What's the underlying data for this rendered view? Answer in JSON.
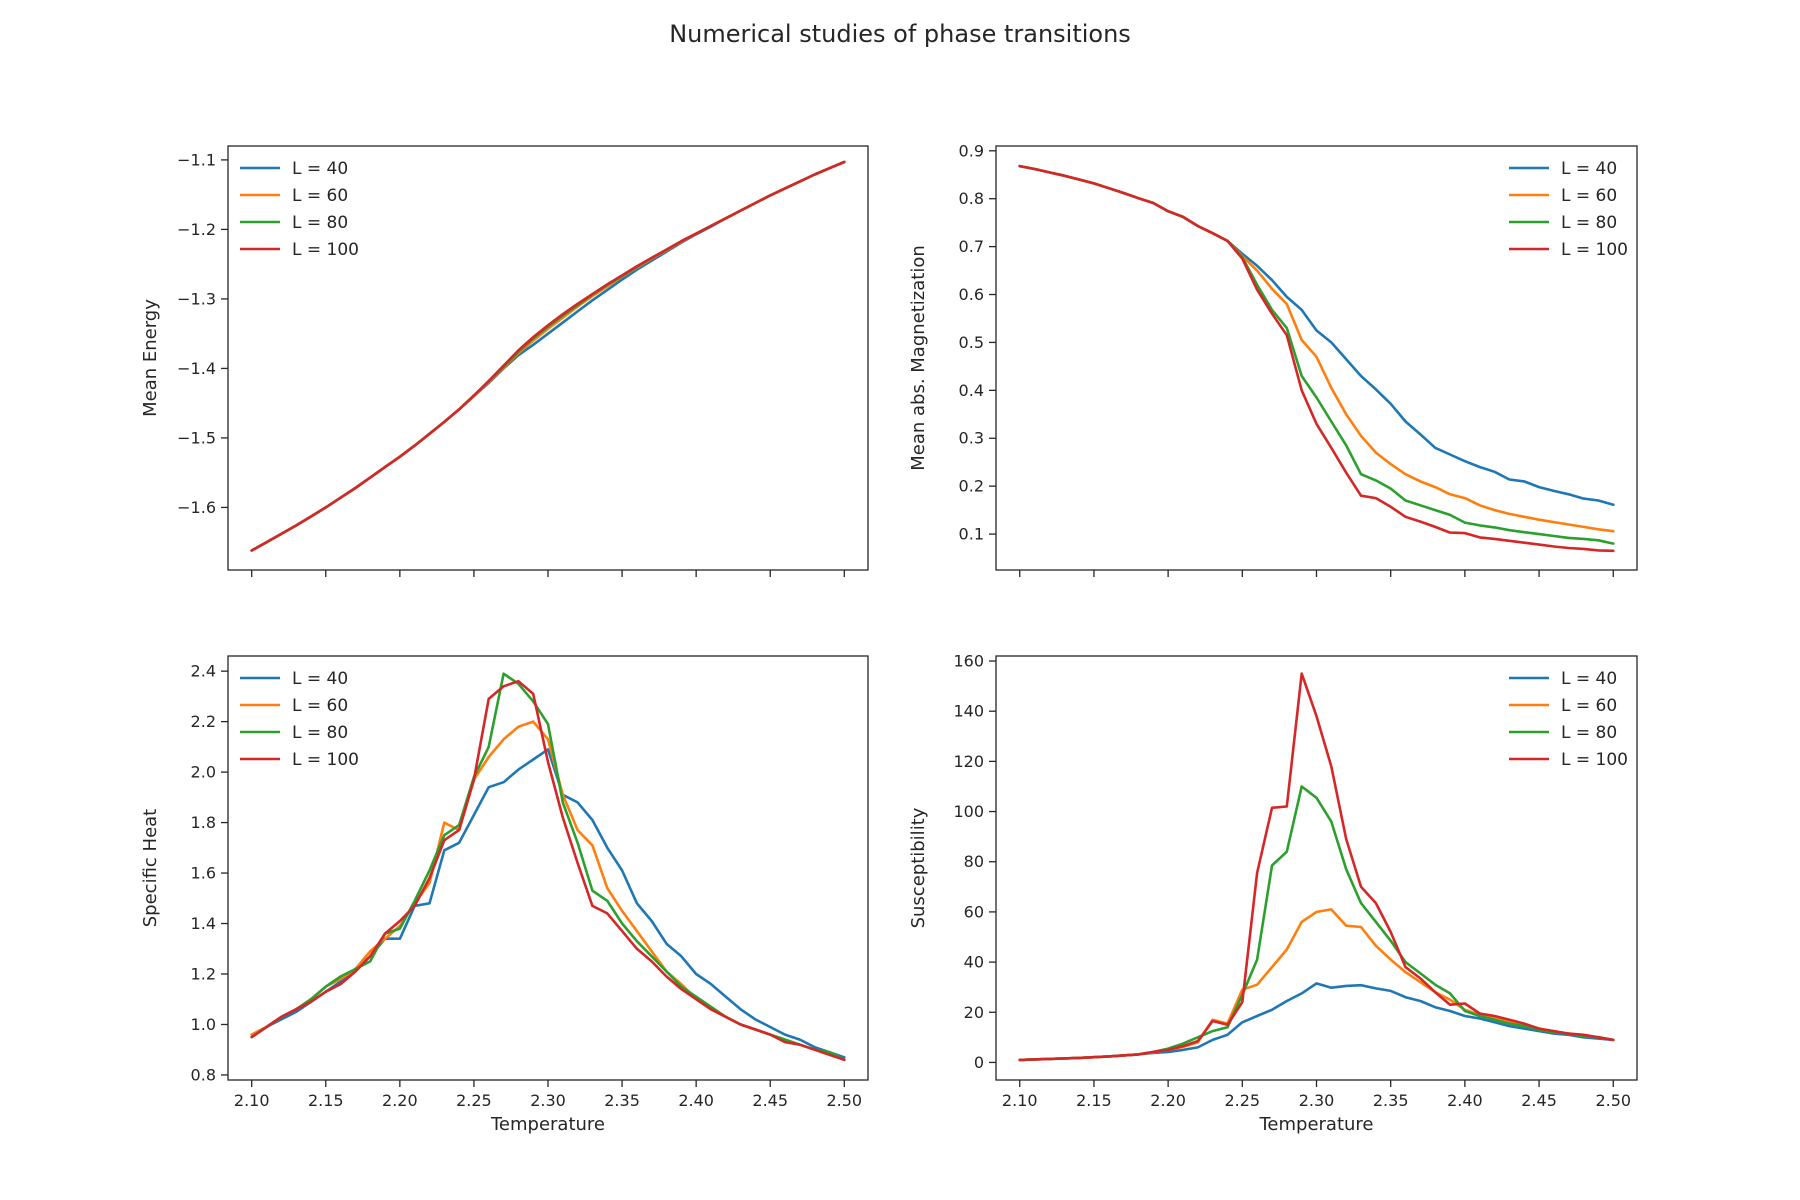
{
  "suptitle": "Numerical studies of phase transitions",
  "colors": {
    "L40": "#1f77b4",
    "L60": "#ff7f0e",
    "L80": "#2ca02c",
    "L100": "#d62728"
  },
  "chart_data": [
    {
      "type": "line",
      "title": "",
      "xlabel": "",
      "ylabel": "Mean Energy",
      "xlim": [
        2.084,
        2.516
      ],
      "ylim": [
        -1.69,
        -1.08
      ],
      "xticks": [
        2.1,
        2.15,
        2.2,
        2.25,
        2.3,
        2.35,
        2.4,
        2.45,
        2.5
      ],
      "xtick_labels": [],
      "yticks": [
        -1.6,
        -1.5,
        -1.4,
        -1.3,
        -1.2,
        -1.1
      ],
      "ytick_labels": [
        "−1.6",
        "−1.5",
        "−1.4",
        "−1.3",
        "−1.2",
        "−1.1"
      ],
      "legend_position": "upper-left",
      "grid": false,
      "x": [
        2.1,
        2.11,
        2.12,
        2.13,
        2.14,
        2.15,
        2.16,
        2.17,
        2.18,
        2.19,
        2.2,
        2.21,
        2.22,
        2.23,
        2.24,
        2.25,
        2.26,
        2.27,
        2.28,
        2.29,
        2.3,
        2.31,
        2.32,
        2.33,
        2.34,
        2.35,
        2.36,
        2.37,
        2.38,
        2.39,
        2.4,
        2.41,
        2.42,
        2.43,
        2.44,
        2.45,
        2.46,
        2.47,
        2.48,
        2.49,
        2.5
      ],
      "series": [
        {
          "name": "L = 40",
          "color": "#1f77b4",
          "values": [
            -1.662,
            -1.65,
            -1.638,
            -1.626,
            -1.613,
            -1.6,
            -1.586,
            -1.572,
            -1.557,
            -1.542,
            -1.527,
            -1.511,
            -1.494,
            -1.477,
            -1.459,
            -1.44,
            -1.421,
            -1.4,
            -1.381,
            -1.366,
            -1.35,
            -1.334,
            -1.318,
            -1.302,
            -1.287,
            -1.272,
            -1.258,
            -1.245,
            -1.232,
            -1.219,
            -1.207,
            -1.196,
            -1.184,
            -1.173,
            -1.162,
            -1.151,
            -1.141,
            -1.131,
            -1.121,
            -1.112,
            -1.103
          ]
        },
        {
          "name": "L = 60",
          "color": "#ff7f0e",
          "values": [
            -1.662,
            -1.65,
            -1.638,
            -1.626,
            -1.613,
            -1.6,
            -1.586,
            -1.572,
            -1.557,
            -1.542,
            -1.527,
            -1.511,
            -1.494,
            -1.477,
            -1.459,
            -1.44,
            -1.42,
            -1.399,
            -1.378,
            -1.36,
            -1.343,
            -1.327,
            -1.311,
            -1.296,
            -1.282,
            -1.268,
            -1.255,
            -1.242,
            -1.23,
            -1.218,
            -1.206,
            -1.195,
            -1.184,
            -1.173,
            -1.162,
            -1.151,
            -1.141,
            -1.131,
            -1.121,
            -1.112,
            -1.103
          ]
        },
        {
          "name": "L = 80",
          "color": "#2ca02c",
          "values": [
            -1.662,
            -1.65,
            -1.638,
            -1.626,
            -1.613,
            -1.6,
            -1.586,
            -1.572,
            -1.557,
            -1.542,
            -1.527,
            -1.511,
            -1.494,
            -1.477,
            -1.459,
            -1.439,
            -1.419,
            -1.398,
            -1.376,
            -1.357,
            -1.34,
            -1.324,
            -1.309,
            -1.294,
            -1.28,
            -1.267,
            -1.254,
            -1.241,
            -1.229,
            -1.217,
            -1.206,
            -1.195,
            -1.184,
            -1.173,
            -1.162,
            -1.151,
            -1.141,
            -1.131,
            -1.121,
            -1.112,
            -1.103
          ]
        },
        {
          "name": "L = 100",
          "color": "#d62728",
          "values": [
            -1.662,
            -1.65,
            -1.638,
            -1.626,
            -1.613,
            -1.6,
            -1.586,
            -1.572,
            -1.557,
            -1.542,
            -1.527,
            -1.511,
            -1.494,
            -1.477,
            -1.459,
            -1.439,
            -1.418,
            -1.396,
            -1.374,
            -1.355,
            -1.338,
            -1.322,
            -1.307,
            -1.293,
            -1.279,
            -1.266,
            -1.253,
            -1.241,
            -1.229,
            -1.217,
            -1.206,
            -1.195,
            -1.184,
            -1.173,
            -1.162,
            -1.151,
            -1.141,
            -1.131,
            -1.121,
            -1.112,
            -1.103
          ]
        }
      ]
    },
    {
      "type": "line",
      "title": "",
      "xlabel": "",
      "ylabel": "Mean abs. Magnetization",
      "xlim": [
        2.084,
        2.516
      ],
      "ylim": [
        0.025,
        0.91
      ],
      "xticks": [
        2.1,
        2.15,
        2.2,
        2.25,
        2.3,
        2.35,
        2.4,
        2.45,
        2.5
      ],
      "xtick_labels": [],
      "yticks": [
        0.1,
        0.2,
        0.3,
        0.4,
        0.5,
        0.6,
        0.7,
        0.8,
        0.9
      ],
      "ytick_labels": [
        "0.1",
        "0.2",
        "0.3",
        "0.4",
        "0.5",
        "0.6",
        "0.7",
        "0.8",
        "0.9"
      ],
      "legend_position": "upper-right",
      "grid": false,
      "x": [
        2.1,
        2.11,
        2.12,
        2.13,
        2.14,
        2.15,
        2.16,
        2.17,
        2.18,
        2.19,
        2.2,
        2.21,
        2.22,
        2.23,
        2.24,
        2.25,
        2.26,
        2.27,
        2.28,
        2.29,
        2.3,
        2.31,
        2.32,
        2.33,
        2.34,
        2.35,
        2.36,
        2.37,
        2.38,
        2.39,
        2.4,
        2.41,
        2.42,
        2.43,
        2.44,
        2.45,
        2.46,
        2.47,
        2.48,
        2.49,
        2.5
      ],
      "series": [
        {
          "name": "L = 40",
          "color": "#1f77b4",
          "values": [
            0.868,
            0.862,
            0.855,
            0.848,
            0.84,
            0.832,
            0.822,
            0.812,
            0.801,
            0.791,
            0.774,
            0.762,
            0.743,
            0.728,
            0.712,
            0.685,
            0.66,
            0.63,
            0.595,
            0.568,
            0.525,
            0.5,
            0.465,
            0.43,
            0.402,
            0.372,
            0.335,
            0.308,
            0.28,
            0.266,
            0.252,
            0.24,
            0.23,
            0.214,
            0.21,
            0.198,
            0.19,
            0.183,
            0.174,
            0.17,
            0.161
          ]
        },
        {
          "name": "L = 60",
          "color": "#ff7f0e",
          "values": [
            0.868,
            0.862,
            0.855,
            0.848,
            0.84,
            0.832,
            0.822,
            0.812,
            0.801,
            0.791,
            0.774,
            0.762,
            0.743,
            0.728,
            0.712,
            0.68,
            0.65,
            0.612,
            0.58,
            0.505,
            0.47,
            0.405,
            0.35,
            0.305,
            0.27,
            0.246,
            0.225,
            0.21,
            0.198,
            0.183,
            0.175,
            0.16,
            0.15,
            0.142,
            0.136,
            0.13,
            0.125,
            0.12,
            0.115,
            0.11,
            0.106
          ]
        },
        {
          "name": "L = 80",
          "color": "#2ca02c",
          "values": [
            0.868,
            0.862,
            0.855,
            0.848,
            0.84,
            0.832,
            0.822,
            0.812,
            0.801,
            0.791,
            0.774,
            0.762,
            0.743,
            0.728,
            0.712,
            0.678,
            0.62,
            0.568,
            0.53,
            0.43,
            0.385,
            0.335,
            0.285,
            0.225,
            0.212,
            0.195,
            0.17,
            0.16,
            0.15,
            0.14,
            0.124,
            0.118,
            0.114,
            0.108,
            0.104,
            0.1,
            0.096,
            0.092,
            0.09,
            0.087,
            0.08
          ]
        },
        {
          "name": "L = 100",
          "color": "#d62728",
          "values": [
            0.868,
            0.862,
            0.855,
            0.848,
            0.84,
            0.832,
            0.822,
            0.812,
            0.801,
            0.791,
            0.774,
            0.762,
            0.743,
            0.728,
            0.712,
            0.675,
            0.61,
            0.56,
            0.515,
            0.4,
            0.33,
            0.28,
            0.228,
            0.18,
            0.175,
            0.157,
            0.136,
            0.126,
            0.115,
            0.103,
            0.102,
            0.093,
            0.09,
            0.086,
            0.082,
            0.078,
            0.074,
            0.071,
            0.069,
            0.066,
            0.065
          ]
        }
      ]
    },
    {
      "type": "line",
      "title": "",
      "xlabel": "Temperature",
      "ylabel": "Specific Heat",
      "xlim": [
        2.084,
        2.516
      ],
      "ylim": [
        0.78,
        2.46
      ],
      "xticks": [
        2.1,
        2.15,
        2.2,
        2.25,
        2.3,
        2.35,
        2.4,
        2.45,
        2.5
      ],
      "xtick_labels": [
        "2.10",
        "2.15",
        "2.20",
        "2.25",
        "2.30",
        "2.35",
        "2.40",
        "2.45",
        "2.50"
      ],
      "yticks": [
        0.8,
        1.0,
        1.2,
        1.4,
        1.6,
        1.8,
        2.0,
        2.2,
        2.4
      ],
      "ytick_labels": [
        "0.8",
        "1.0",
        "1.2",
        "1.4",
        "1.6",
        "1.8",
        "2.0",
        "2.2",
        "2.4"
      ],
      "legend_position": "upper-left",
      "grid": false,
      "x": [
        2.1,
        2.11,
        2.12,
        2.13,
        2.14,
        2.15,
        2.16,
        2.17,
        2.18,
        2.19,
        2.2,
        2.21,
        2.22,
        2.23,
        2.24,
        2.25,
        2.26,
        2.27,
        2.28,
        2.29,
        2.3,
        2.31,
        2.32,
        2.33,
        2.34,
        2.35,
        2.36,
        2.37,
        2.38,
        2.39,
        2.4,
        2.41,
        2.42,
        2.43,
        2.44,
        2.45,
        2.46,
        2.47,
        2.48,
        2.49,
        2.5
      ],
      "series": [
        {
          "name": "L = 40",
          "color": "#1f77b4",
          "values": [
            0.96,
            0.99,
            1.02,
            1.05,
            1.09,
            1.13,
            1.17,
            1.22,
            1.27,
            1.34,
            1.34,
            1.47,
            1.48,
            1.69,
            1.72,
            1.83,
            1.94,
            1.96,
            2.01,
            2.05,
            2.09,
            1.91,
            1.88,
            1.81,
            1.7,
            1.61,
            1.48,
            1.41,
            1.32,
            1.27,
            1.2,
            1.16,
            1.11,
            1.06,
            1.02,
            0.99,
            0.96,
            0.94,
            0.91,
            0.89,
            0.87
          ]
        },
        {
          "name": "L = 60",
          "color": "#ff7f0e",
          "values": [
            0.96,
            0.99,
            1.03,
            1.06,
            1.1,
            1.15,
            1.18,
            1.22,
            1.29,
            1.34,
            1.39,
            1.48,
            1.56,
            1.8,
            1.77,
            1.97,
            2.06,
            2.13,
            2.18,
            2.2,
            2.13,
            1.91,
            1.77,
            1.71,
            1.54,
            1.45,
            1.37,
            1.29,
            1.21,
            1.16,
            1.1,
            1.06,
            1.03,
            1.0,
            0.98,
            0.96,
            0.94,
            0.92,
            0.9,
            0.88,
            0.86
          ]
        },
        {
          "name": "L = 80",
          "color": "#2ca02c",
          "values": [
            0.95,
            0.99,
            1.03,
            1.06,
            1.1,
            1.15,
            1.19,
            1.22,
            1.25,
            1.36,
            1.38,
            1.49,
            1.61,
            1.75,
            1.79,
            1.98,
            2.1,
            2.39,
            2.35,
            2.28,
            2.19,
            1.88,
            1.72,
            1.53,
            1.49,
            1.4,
            1.33,
            1.27,
            1.21,
            1.15,
            1.11,
            1.07,
            1.03,
            1.0,
            0.98,
            0.96,
            0.94,
            0.92,
            0.9,
            0.89,
            0.86
          ]
        },
        {
          "name": "L = 100",
          "color": "#d62728",
          "values": [
            0.95,
            0.99,
            1.03,
            1.06,
            1.09,
            1.13,
            1.16,
            1.21,
            1.27,
            1.36,
            1.41,
            1.47,
            1.58,
            1.73,
            1.77,
            1.97,
            2.29,
            2.34,
            2.36,
            2.31,
            2.04,
            1.82,
            1.64,
            1.47,
            1.44,
            1.37,
            1.3,
            1.25,
            1.19,
            1.14,
            1.1,
            1.06,
            1.03,
            1.0,
            0.98,
            0.96,
            0.93,
            0.92,
            0.9,
            0.88,
            0.86
          ]
        }
      ]
    },
    {
      "type": "line",
      "title": "",
      "xlabel": "Temperature",
      "ylabel": "Susceptibility",
      "xlim": [
        2.084,
        2.516
      ],
      "ylim": [
        -7,
        162
      ],
      "xticks": [
        2.1,
        2.15,
        2.2,
        2.25,
        2.3,
        2.35,
        2.4,
        2.45,
        2.5
      ],
      "xtick_labels": [
        "2.10",
        "2.15",
        "2.20",
        "2.25",
        "2.30",
        "2.35",
        "2.40",
        "2.45",
        "2.50"
      ],
      "yticks": [
        0,
        20,
        40,
        60,
        80,
        100,
        120,
        140,
        160
      ],
      "ytick_labels": [
        "0",
        "20",
        "40",
        "60",
        "80",
        "100",
        "120",
        "140",
        "160"
      ],
      "legend_position": "upper-right",
      "grid": false,
      "x": [
        2.1,
        2.11,
        2.12,
        2.13,
        2.14,
        2.15,
        2.16,
        2.17,
        2.18,
        2.19,
        2.2,
        2.21,
        2.22,
        2.23,
        2.24,
        2.25,
        2.26,
        2.27,
        2.28,
        2.29,
        2.3,
        2.31,
        2.32,
        2.33,
        2.34,
        2.35,
        2.36,
        2.37,
        2.38,
        2.39,
        2.4,
        2.41,
        2.42,
        2.43,
        2.44,
        2.45,
        2.46,
        2.47,
        2.48,
        2.49,
        2.5
      ],
      "series": [
        {
          "name": "L = 40",
          "color": "#1f77b4",
          "values": [
            1,
            1.2,
            1.4,
            1.6,
            1.8,
            2.1,
            2.4,
            2.8,
            3.2,
            3.8,
            4.2,
            5.0,
            6.0,
            9.0,
            11.0,
            16.0,
            18.5,
            21.0,
            24.5,
            27.5,
            31.5,
            29.8,
            30.5,
            30.8,
            29.5,
            28.5,
            26.0,
            24.5,
            22.0,
            20.5,
            18.5,
            17.5,
            16.0,
            14.5,
            13.5,
            12.5,
            11.5,
            11.0,
            10.0,
            9.5,
            9.0
          ]
        },
        {
          "name": "L = 60",
          "color": "#ff7f0e",
          "values": [
            1,
            1.2,
            1.4,
            1.6,
            1.8,
            2.1,
            2.4,
            2.8,
            3.2,
            4.0,
            5.0,
            6.2,
            8.0,
            17.0,
            15.5,
            29.0,
            31.0,
            38.0,
            45.0,
            56.0,
            60.0,
            61.0,
            54.5,
            54.0,
            46.5,
            41.0,
            36.0,
            32.0,
            28.0,
            25.0,
            21.0,
            19.0,
            17.5,
            16.0,
            14.5,
            13.5,
            12.5,
            11.5,
            10.5,
            10.0,
            9.0
          ]
        },
        {
          "name": "L = 80",
          "color": "#2ca02c",
          "values": [
            1,
            1.2,
            1.4,
            1.6,
            1.8,
            2.1,
            2.4,
            2.8,
            3.2,
            4.2,
            5.5,
            7.5,
            10.0,
            12.5,
            14.0,
            27.0,
            41.0,
            78.5,
            84.0,
            110.0,
            105.5,
            96.0,
            77.0,
            63.5,
            56.0,
            48.5,
            40.0,
            35.5,
            31.0,
            27.5,
            20.5,
            18.5,
            17.0,
            15.5,
            14.5,
            13.0,
            12.0,
            11.5,
            10.5,
            10.0,
            9.0
          ]
        },
        {
          "name": "L = 100",
          "color": "#d62728",
          "values": [
            1,
            1.2,
            1.4,
            1.6,
            1.8,
            2.1,
            2.4,
            2.8,
            3.2,
            4.2,
            5.0,
            6.5,
            8.5,
            16.5,
            15.0,
            24.0,
            75.5,
            101.5,
            102.0,
            155.0,
            138.0,
            118.0,
            89.0,
            70.0,
            63.5,
            52.0,
            38.0,
            33.5,
            28.0,
            23.0,
            23.5,
            19.5,
            18.5,
            17.0,
            15.5,
            13.5,
            12.5,
            11.5,
            11.0,
            10.0,
            9.0
          ]
        }
      ]
    }
  ]
}
